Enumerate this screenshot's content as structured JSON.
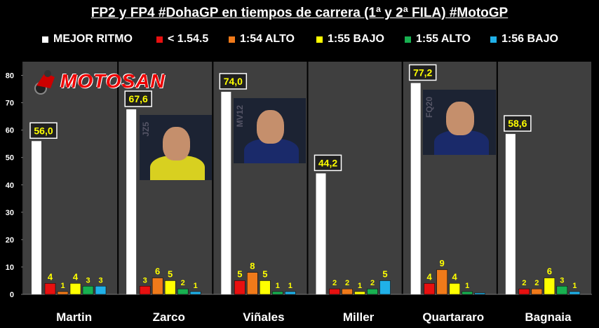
{
  "title": "FP2 y FP4 #DohaGP en tiempos de carrera (1ª y 2ª FILA) #MotoGP",
  "logo_text": "MOTOSAN",
  "legend": [
    {
      "label": "MEJOR RITMO",
      "color": "#ffffff"
    },
    {
      "label": "< 1.54.5",
      "color": "#e81010"
    },
    {
      "label": "1:54 ALTO",
      "color": "#f07a1a"
    },
    {
      "label": "1:55 BAJO",
      "color": "#ffff00"
    },
    {
      "label": "1:55 ALTO",
      "color": "#18b050"
    },
    {
      "label": "1:56 BAJO",
      "color": "#20b0e8"
    }
  ],
  "photos": [
    {
      "rider": "Zarco",
      "number_text": "JZ5",
      "suit_color": "#d8d020"
    },
    {
      "rider": "Viñales",
      "number_text": "MV12",
      "suit_color": "#1a2a6a"
    },
    {
      "rider": "Quartararo",
      "number_text": "FQ20",
      "suit_color": "#1a2a6a"
    }
  ],
  "chart_data": {
    "type": "bar",
    "categories": [
      "Martin",
      "Zarco",
      "Viñales",
      "Miller",
      "Quartararo",
      "Bagnaia"
    ],
    "series": [
      {
        "name": "MEJOR RITMO",
        "color": "#ffffff",
        "values": [
          56.0,
          67.6,
          74.0,
          44.2,
          77.2,
          58.6
        ],
        "labels": [
          "56,0",
          "67,6",
          "74,0",
          "44,2",
          "77,2",
          "58,6"
        ]
      },
      {
        "name": "< 1.54.5",
        "color": "#e81010",
        "values": [
          4,
          3,
          5,
          2,
          4,
          2
        ],
        "labels": [
          "4",
          "3",
          "5",
          "2",
          "4",
          "2"
        ]
      },
      {
        "name": "1:54 ALTO",
        "color": "#f07a1a",
        "values": [
          1,
          6,
          8,
          2,
          9,
          2
        ],
        "labels": [
          "1",
          "6",
          "8",
          "2",
          "9",
          "2"
        ]
      },
      {
        "name": "1:55 BAJO",
        "color": "#ffff00",
        "values": [
          4,
          5,
          5,
          1,
          4,
          6
        ],
        "labels": [
          "4",
          "5",
          "5",
          "1",
          "4",
          "6"
        ]
      },
      {
        "name": "1:55 ALTO",
        "color": "#18b050",
        "values": [
          3,
          2,
          1,
          2,
          1,
          3
        ],
        "labels": [
          "3",
          "2",
          "1",
          "2",
          "1",
          "3"
        ]
      },
      {
        "name": "1:56 BAJO",
        "color": "#20b0e8",
        "values": [
          3,
          1,
          1,
          5,
          0,
          1
        ],
        "labels": [
          "3",
          "1",
          "1",
          "5",
          "",
          "1"
        ]
      }
    ],
    "yticks": [
      "0",
      "10",
      "20",
      "30",
      "40",
      "50",
      "60",
      "70",
      "80"
    ],
    "ylim": [
      0,
      85
    ],
    "grid": false,
    "legend_position": "top"
  }
}
